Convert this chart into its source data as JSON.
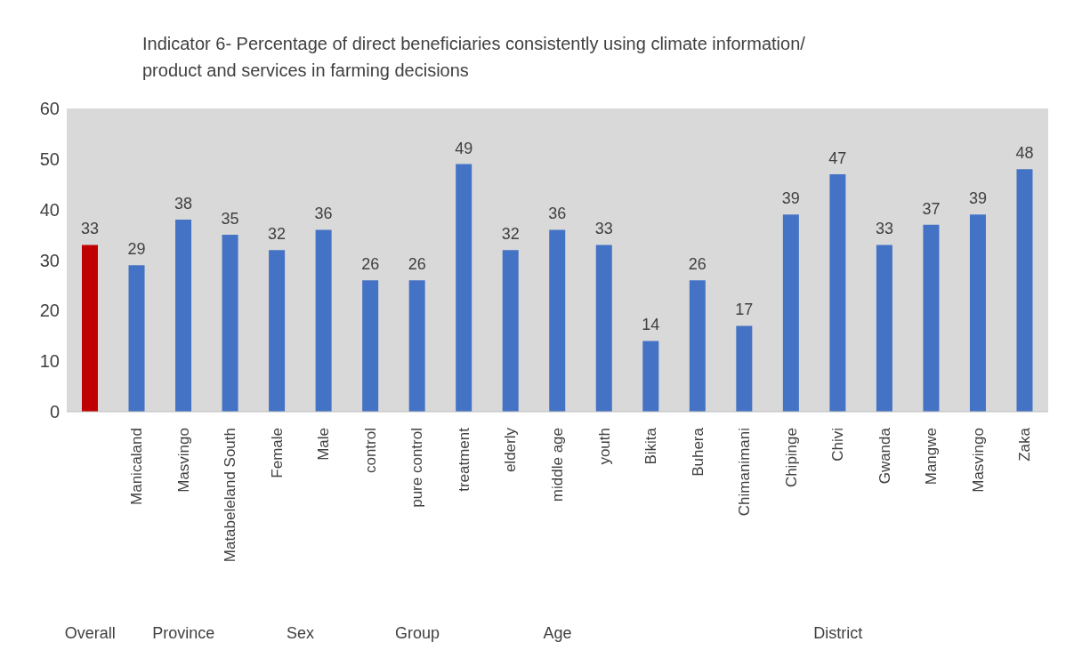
{
  "chart_data": {
    "type": "bar",
    "title": "Indicator 6- Percentage of direct beneficiaries consistently using climate information/ product and services in farming decisions",
    "categories": [
      null,
      "Manicaland",
      "Masvingo",
      "Matabeleland South",
      "Female",
      "Male",
      "control",
      "pure control",
      "treatment",
      "elderly",
      "middle age",
      "youth",
      "Bikita",
      "Buhera",
      "Chimanimani",
      "Chipinge",
      "Chivi",
      "Gwanda",
      "Mangwe",
      "Masvingo",
      "Zaka"
    ],
    "values": [
      33,
      29,
      38,
      35,
      32,
      36,
      26,
      26,
      49,
      32,
      36,
      33,
      14,
      26,
      17,
      39,
      47,
      33,
      37,
      39,
      48
    ],
    "colors": [
      "#c00000",
      "#4472c4",
      "#4472c4",
      "#4472c4",
      "#4472c4",
      "#4472c4",
      "#4472c4",
      "#4472c4",
      "#4472c4",
      "#4472c4",
      "#4472c4",
      "#4472c4",
      "#4472c4",
      "#4472c4",
      "#4472c4",
      "#4472c4",
      "#4472c4",
      "#4472c4",
      "#4472c4",
      "#4472c4",
      "#4472c4"
    ],
    "ylim": [
      0,
      60
    ],
    "yticks": [
      0,
      10,
      20,
      30,
      40,
      50,
      60
    ],
    "data_labels": true,
    "annotations": [
      "Overall",
      "Province",
      "Sex",
      "Group",
      "Age",
      "District"
    ]
  }
}
